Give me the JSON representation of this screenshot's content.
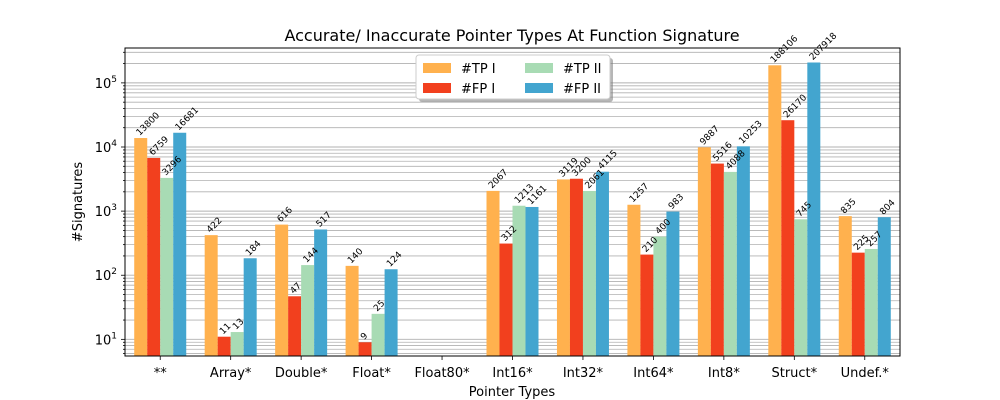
{
  "chart_data": {
    "type": "bar",
    "title": "Accurate/ Inaccurate Pointer Types At Function Signature",
    "xlabel": "Pointer Types",
    "ylabel": "#Signatures",
    "yscale": "log",
    "ylim": [
      5.5,
      350000
    ],
    "grid": "y-major-and-minor",
    "legend_position": "top-center",
    "categories": [
      "**",
      "Array*",
      "Double*",
      "Float*",
      "Float80*",
      "Int16*",
      "Int32*",
      "Int64*",
      "Int8*",
      "Struct*",
      "Undef.*"
    ],
    "series": [
      {
        "name": "#TP I",
        "color": "#ffb14e",
        "values": [
          13800,
          422,
          616,
          140,
          null,
          2067,
          3119,
          1257,
          9887,
          188106,
          835
        ]
      },
      {
        "name": "#FP I",
        "color": "#f2401e",
        "values": [
          6759,
          11,
          47,
          9,
          null,
          312,
          3200,
          210,
          5516,
          26170,
          225
        ]
      },
      {
        "name": "#TP II",
        "color": "#a8dbb4",
        "values": [
          3296,
          13,
          144,
          25,
          null,
          1213,
          2061,
          400,
          4088,
          745,
          257
        ]
      },
      {
        "name": "#FP II",
        "color": "#43a5cf",
        "values": [
          16681,
          184,
          517,
          124,
          null,
          1161,
          4115,
          983,
          10253,
          207918,
          804
        ]
      }
    ],
    "yticks": [
      {
        "label": "10",
        "sup": "1",
        "value": 10
      },
      {
        "label": "10",
        "sup": "2",
        "value": 100
      },
      {
        "label": "10",
        "sup": "3",
        "value": 1000
      },
      {
        "label": "10",
        "sup": "4",
        "value": 10000
      },
      {
        "label": "10",
        "sup": "5",
        "value": 100000
      }
    ]
  }
}
